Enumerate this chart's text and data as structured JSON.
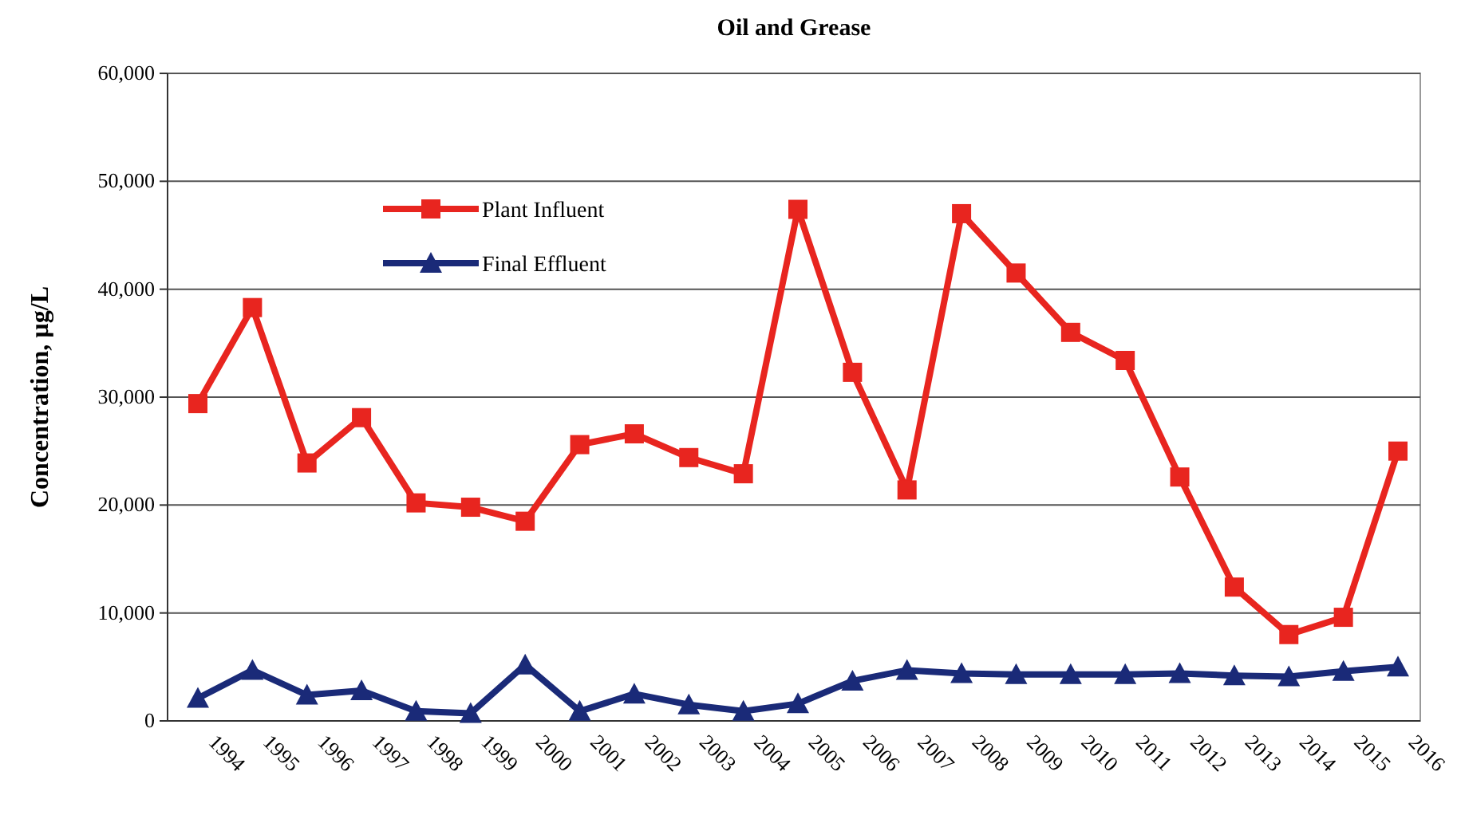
{
  "chart_data": {
    "type": "line",
    "title": "Oil and Grease",
    "ylabel": "Concentration, µg/L",
    "categories": [
      "1994",
      "1995",
      "1996",
      "1997",
      "1998",
      "1999",
      "2000",
      "2001",
      "2002",
      "2003",
      "2004",
      "2005",
      "2006",
      "2007",
      "2008",
      "2009",
      "2010",
      "2011",
      "2012",
      "2013",
      "2014",
      "2015",
      "2016"
    ],
    "series": [
      {
        "name": "Plant Influent",
        "color": "#e8251f",
        "marker": "square",
        "values": [
          29400,
          38300,
          23900,
          28100,
          20200,
          19800,
          18500,
          25600,
          26600,
          24400,
          22900,
          47400,
          32300,
          21400,
          47000,
          41500,
          36000,
          33400,
          22600,
          12400,
          8000,
          9600,
          25000
        ]
      },
      {
        "name": "Final Effluent",
        "color": "#1a2a78",
        "marker": "triangle",
        "values": [
          2100,
          4700,
          2400,
          2800,
          900,
          700,
          5200,
          900,
          2500,
          1500,
          900,
          1600,
          3700,
          4700,
          4400,
          4300,
          4300,
          4300,
          4400,
          4200,
          4100,
          4600,
          5000
        ]
      }
    ],
    "ylim": [
      0,
      60000
    ],
    "yticks": [
      {
        "value": 0,
        "label": "0"
      },
      {
        "value": 10000,
        "label": "10,000"
      },
      {
        "value": 20000,
        "label": "20,000"
      },
      {
        "value": 30000,
        "label": "30,000"
      },
      {
        "value": 40000,
        "label": "40,000"
      },
      {
        "value": 50000,
        "label": "50,000"
      },
      {
        "value": 60000,
        "label": "60,000"
      }
    ],
    "grid": "y",
    "legend": "top left",
    "line_style": "solid"
  }
}
